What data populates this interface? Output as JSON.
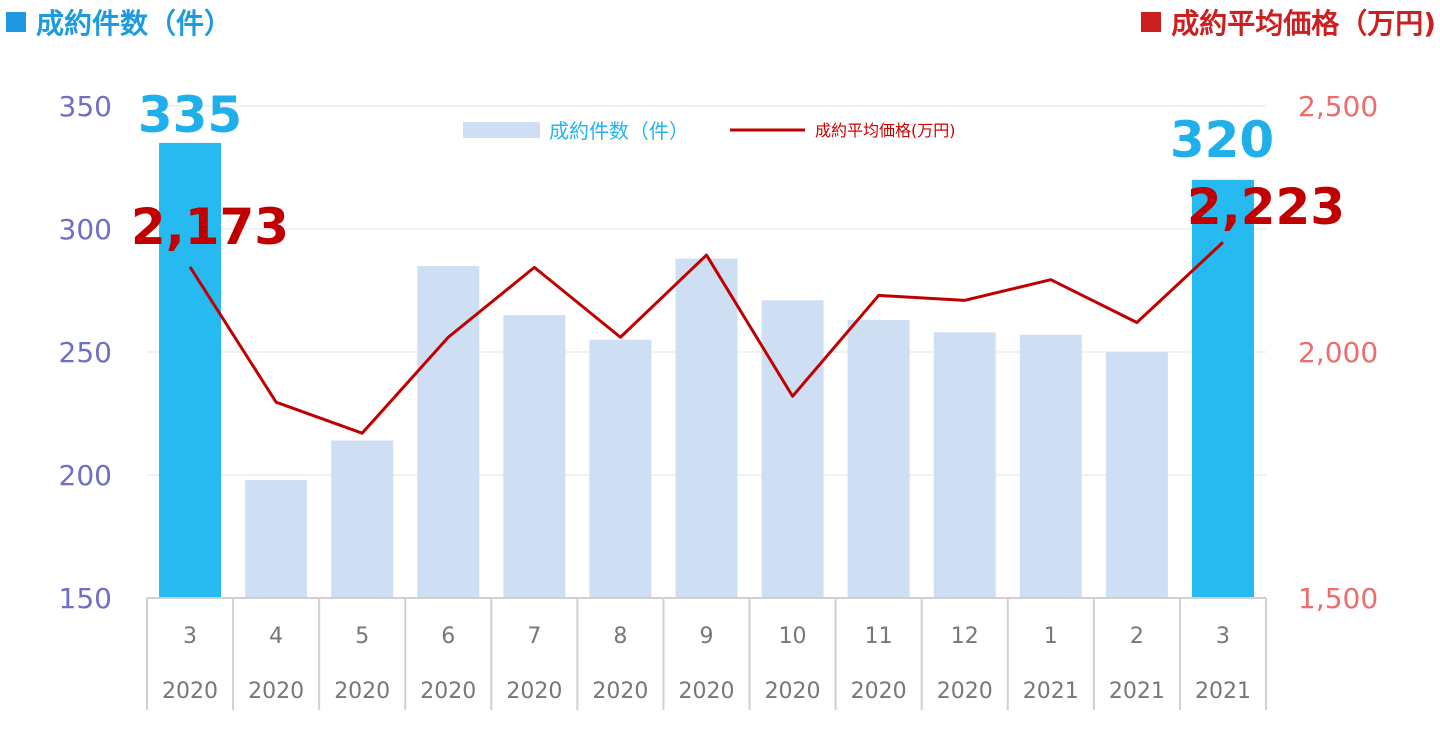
{
  "header": {
    "left_title": "成約件数（件）",
    "right_title": "成約平均価格（万円)"
  },
  "colors": {
    "bar_normal": "#cfdff3",
    "bar_highlight": "#26baf0",
    "line": "#c00000",
    "left_axis_text": "#6f6fc8",
    "right_axis_text": "#f06c6c"
  },
  "chart_data": {
    "type": "bar",
    "categories": [
      "3",
      "4",
      "5",
      "6",
      "7",
      "8",
      "9",
      "10",
      "11",
      "12",
      "1",
      "2",
      "3"
    ],
    "years": [
      "2020",
      "2020",
      "2020",
      "2020",
      "2020",
      "2020",
      "2020",
      "2020",
      "2020",
      "2020",
      "2021",
      "2021",
      "2021"
    ],
    "series": [
      {
        "name": "成約件数（件）",
        "type": "bar",
        "axis": "left",
        "values": [
          335,
          198,
          214,
          285,
          265,
          255,
          288,
          271,
          263,
          258,
          257,
          250,
          320
        ],
        "highlight": [
          0,
          12
        ]
      },
      {
        "name": "成約平均価格(万円)",
        "type": "line",
        "axis": "right",
        "values": [
          2173,
          1898,
          1835,
          2030,
          2172,
          2030,
          2197,
          1910,
          2115,
          2105,
          2147,
          2060,
          2223
        ]
      }
    ],
    "y_left": {
      "lim": [
        150,
        350
      ],
      "ticks": [
        "150",
        "200",
        "250",
        "300",
        "350"
      ]
    },
    "y_right": {
      "lim": [
        1500,
        2500
      ],
      "ticks": [
        "1,500",
        "2,000",
        "2,500"
      ]
    },
    "annotations": [
      {
        "text": "335"
      },
      {
        "text": "2,173"
      },
      {
        "text": "320"
      },
      {
        "text": "2,223"
      }
    ],
    "grid": true,
    "legend": "top-center"
  }
}
